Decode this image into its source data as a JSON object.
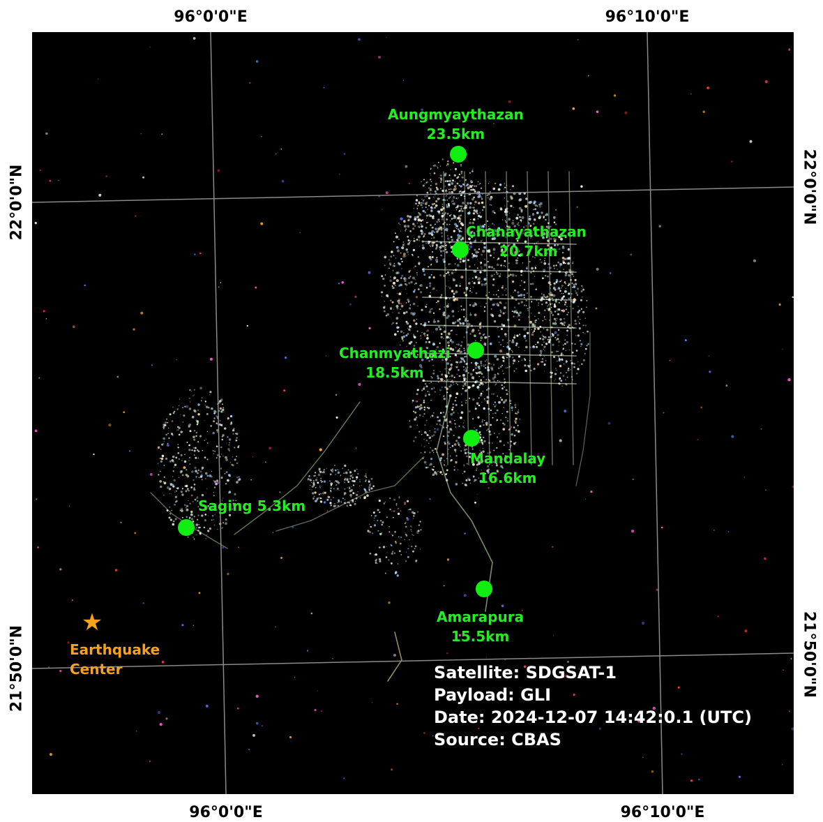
{
  "coordinate_labels": {
    "top_left_lon": "96°0'0\"E",
    "top_right_lon": "96°10'0\"E",
    "bottom_left_lon": "96°0'0\"E",
    "bottom_right_lon": "96°10'0\"E",
    "left_top_lat": "22°0'0\"N",
    "left_bottom_lat": "21°50'0\"N",
    "right_top_lat": "22°0'0\"N",
    "right_bottom_lat": "21°50'0\"N"
  },
  "places": [
    {
      "name": "Aungmyaythazan",
      "distance": "23.5km"
    },
    {
      "name": "Chanayathazan",
      "distance": "20.7km"
    },
    {
      "name": "Chanmyathazi",
      "distance": "18.5km"
    },
    {
      "name": "Mandalay",
      "distance": "16.6km"
    },
    {
      "name": "Saging",
      "distance": "5.3km"
    },
    {
      "name": "Amarapura",
      "distance": "15.5km"
    }
  ],
  "earthquake": {
    "line1": "Earthquake",
    "line2": "Center"
  },
  "info": {
    "satellite": "Satellite: SDGSAT-1",
    "payload": "Payload: GLI",
    "date": "Date: 2024-12-07 14:42:0.1 (UTC)",
    "source": "Source: CBAS"
  },
  "colors": {
    "place_marker": "#11ee11",
    "place_label": "#22ee22",
    "earthquake": "#f6a21c",
    "map_background": "#000000",
    "graticule": "#8a8a8a"
  }
}
